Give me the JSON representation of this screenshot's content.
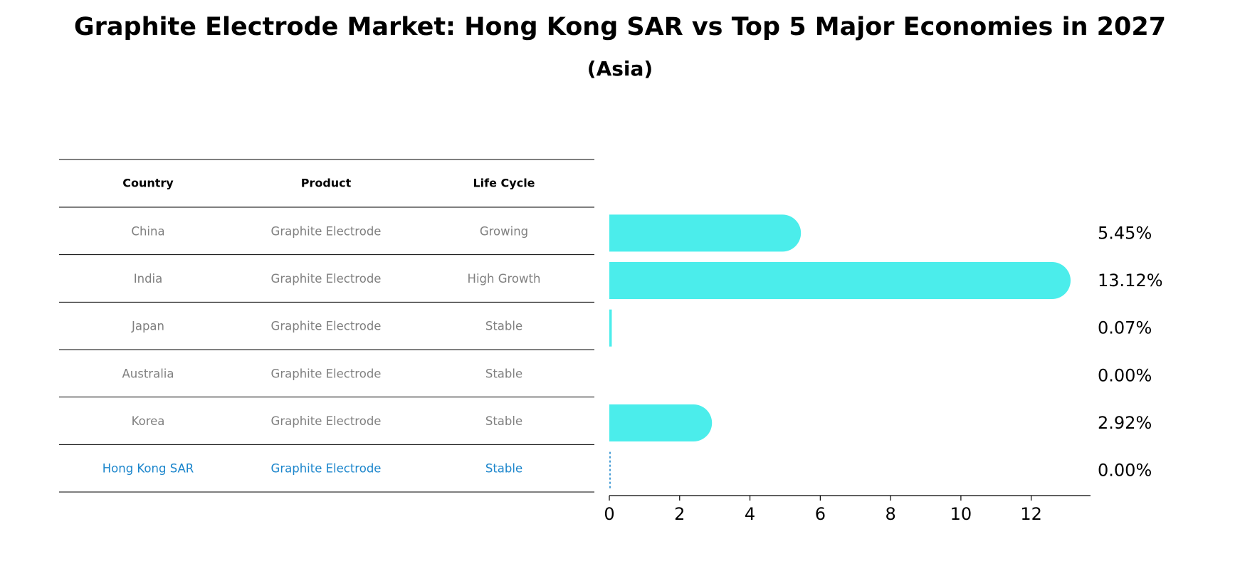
{
  "chart_data": {
    "type": "bar",
    "orientation": "horizontal",
    "title": "Graphite Electrode Market: Hong Kong SAR vs Top 5 Major Economies in 2027",
    "subtitle": "(Asia)",
    "table": {
      "columns": [
        "Country",
        "Product",
        "Life Cycle"
      ],
      "rows": [
        {
          "country": "China",
          "product": "Graphite Electrode",
          "life_cycle": "Growing",
          "highlight": false
        },
        {
          "country": "India",
          "product": "Graphite Electrode",
          "life_cycle": "High Growth",
          "highlight": false
        },
        {
          "country": "Japan",
          "product": "Graphite Electrode",
          "life_cycle": "Stable",
          "highlight": false
        },
        {
          "country": "Australia",
          "product": "Graphite Electrode",
          "life_cycle": "Stable",
          "highlight": false
        },
        {
          "country": "Korea",
          "product": "Graphite Electrode",
          "life_cycle": "Stable",
          "highlight": false
        },
        {
          "country": "Hong Kong SAR",
          "product": "Graphite Electrode",
          "life_cycle": "Stable",
          "highlight": true
        }
      ]
    },
    "categories": [
      "China",
      "India",
      "Japan",
      "Australia",
      "Korea",
      "Hong Kong SAR"
    ],
    "values": [
      5.45,
      13.12,
      0.07,
      0.0,
      2.92,
      0.0
    ],
    "value_labels": [
      "5.45%",
      "13.12%",
      "0.07%",
      "0.00%",
      "2.92%",
      "0.00%"
    ],
    "xlim": [
      0,
      13.8
    ],
    "xticks": [
      0,
      2,
      4,
      6,
      8,
      10,
      12
    ],
    "colors": {
      "bar": "#4BEDEB",
      "highlight": "#1C86CC",
      "muted_text": "#808080",
      "text": "#000000"
    }
  }
}
